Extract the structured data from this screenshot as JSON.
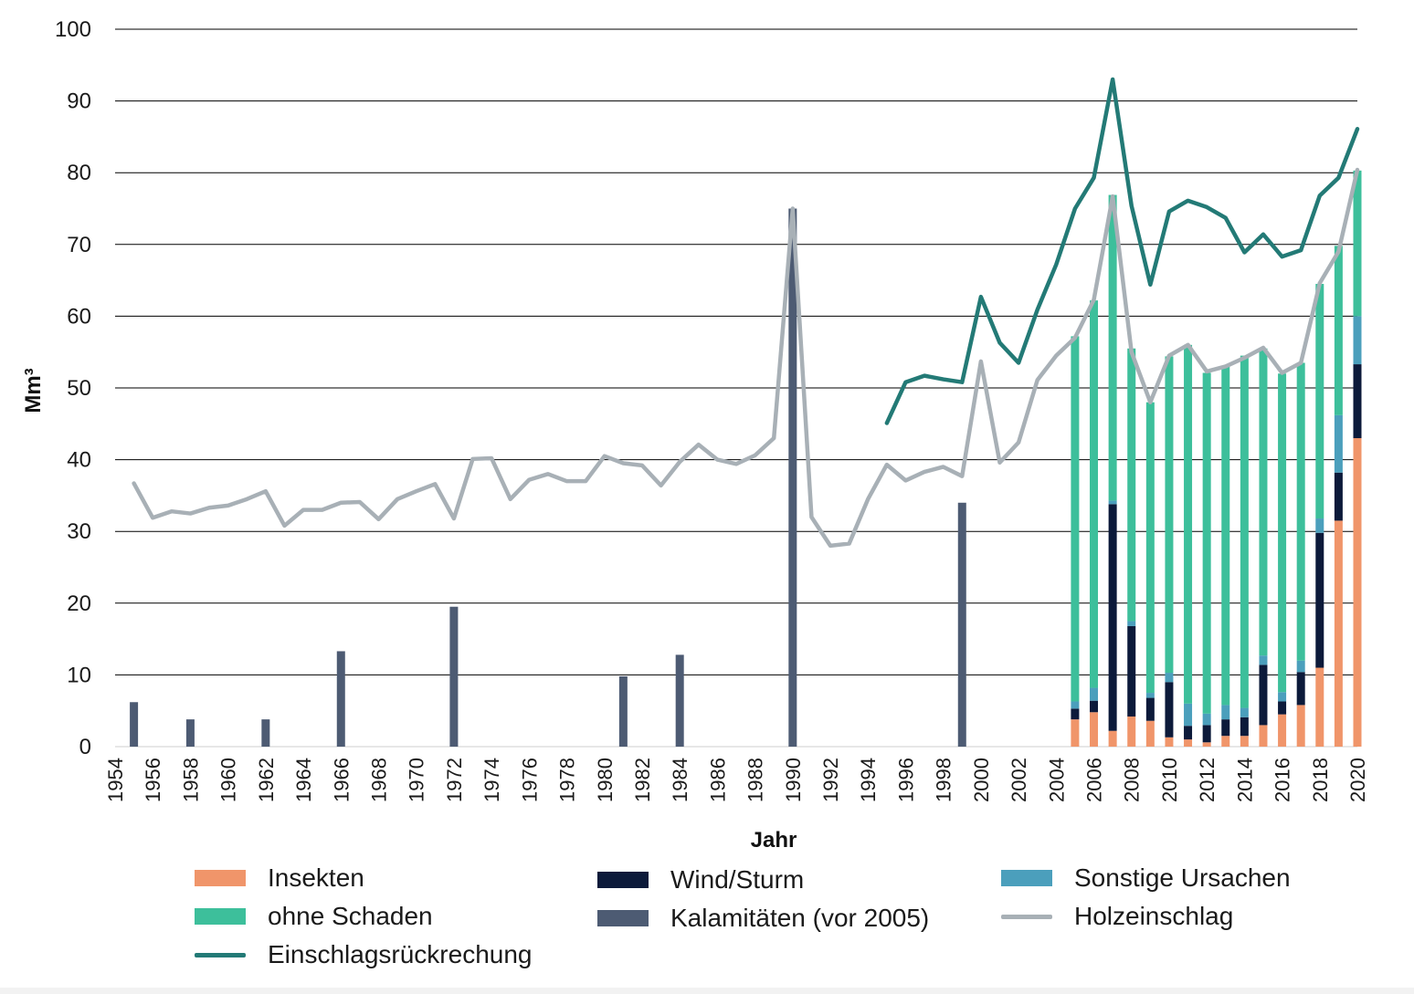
{
  "colors": {
    "insekten": "#F0956A",
    "ohne_schaden": "#3DBF9B",
    "wind": "#0C1A3A",
    "sonstige": "#4B9FBC",
    "kalamitaeten": "#4D5B73",
    "einschlag": "#237A76",
    "holzeinschlag": "#A8B0B6",
    "grid": "#000000"
  },
  "chart_data": {
    "type": "bar",
    "xlabel": "Jahr",
    "ylabel": "Mm³",
    "ylim": [
      0,
      100
    ],
    "yticks": [
      "0",
      "10",
      "20",
      "30",
      "40",
      "50",
      "60",
      "70",
      "80",
      "90",
      "100"
    ],
    "xticks": [
      "1954",
      "1956",
      "1958",
      "1960",
      "1962",
      "1964",
      "1966",
      "1968",
      "1970",
      "1972",
      "1974",
      "1976",
      "1978",
      "1980",
      "1982",
      "1984",
      "1986",
      "1988",
      "1990",
      "1992",
      "1994",
      "1996",
      "1998",
      "2000",
      "2002",
      "2004",
      "2006",
      "2008",
      "2010",
      "2012",
      "2014",
      "2016",
      "2018",
      "2020"
    ],
    "grid": true,
    "legend_position": "bottom",
    "legend": {
      "insekten": "Insekten",
      "ohne_schaden": "ohne Schaden",
      "einschlag": "Einschlagsrückrechung",
      "wind": "Wind/Sturm",
      "kalamitaeten": "Kalamitäten (vor 2005)",
      "sonstige": "Sonstige Ursachen",
      "holzeinschlag": "Holzeinschlag"
    },
    "kalamitaeten": [
      {
        "year": 1955,
        "value": 6.2
      },
      {
        "year": 1958,
        "value": 3.8
      },
      {
        "year": 1962,
        "value": 3.8
      },
      {
        "year": 1966,
        "value": 13.3
      },
      {
        "year": 1972,
        "value": 19.5
      },
      {
        "year": 1981,
        "value": 9.8
      },
      {
        "year": 1984,
        "value": 12.8
      },
      {
        "year": 1990,
        "value": 75.0
      },
      {
        "year": 1999,
        "value": 34.0
      }
    ],
    "stacked_years": [
      2005,
      2006,
      2007,
      2008,
      2009,
      2010,
      2011,
      2012,
      2013,
      2014,
      2015,
      2016,
      2017,
      2018,
      2019,
      2020
    ],
    "series": [
      {
        "name": "Insekten",
        "key": "insekten",
        "values": [
          3.8,
          4.8,
          2.2,
          4.2,
          3.6,
          1.3,
          1.0,
          0.6,
          1.5,
          1.5,
          3.0,
          4.5,
          5.8,
          11.0,
          31.5,
          43.0
        ]
      },
      {
        "name": "Wind/Sturm",
        "key": "wind",
        "values": [
          1.5,
          1.6,
          31.6,
          12.6,
          3.2,
          7.7,
          1.9,
          2.4,
          2.3,
          2.6,
          8.4,
          1.8,
          4.6,
          18.8,
          6.7,
          10.3
        ]
      },
      {
        "name": "Sonstige Ursachen",
        "key": "sonstige",
        "values": [
          1.0,
          1.8,
          0.5,
          0.7,
          0.7,
          1.3,
          3.1,
          1.6,
          2.0,
          1.3,
          1.3,
          1.3,
          1.6,
          2.0,
          8.0,
          6.7
        ]
      },
      {
        "name": "ohne Schaden",
        "key": "ohne_schaden",
        "values": [
          50.9,
          54.0,
          42.6,
          38.0,
          40.5,
          44.1,
          50.0,
          47.5,
          47.2,
          49.1,
          42.8,
          44.4,
          41.5,
          32.7,
          23.6,
          20.3
        ]
      }
    ],
    "holzeinschlag": {
      "years": [
        1955,
        1956,
        1957,
        1958,
        1959,
        1960,
        1961,
        1962,
        1963,
        1964,
        1965,
        1966,
        1967,
        1968,
        1969,
        1970,
        1971,
        1972,
        1973,
        1974,
        1975,
        1976,
        1977,
        1978,
        1979,
        1980,
        1981,
        1982,
        1983,
        1984,
        1985,
        1986,
        1987,
        1988,
        1989,
        1990,
        1991,
        1992,
        1993,
        1994,
        1995,
        1996,
        1997,
        1998,
        1999,
        2000,
        2001,
        2002,
        2003,
        2004,
        2005,
        2006,
        2007,
        2008,
        2009,
        2010,
        2011,
        2012,
        2013,
        2014,
        2015,
        2016,
        2017,
        2018,
        2019,
        2020
      ],
      "values": [
        36.7,
        31.9,
        32.8,
        32.5,
        33.3,
        33.6,
        34.5,
        35.6,
        30.8,
        33.0,
        33.0,
        34.0,
        34.1,
        31.7,
        34.5,
        35.6,
        36.6,
        31.8,
        40.1,
        40.2,
        34.5,
        37.2,
        38.0,
        37.0,
        37.0,
        40.5,
        39.5,
        39.2,
        36.4,
        39.7,
        42.1,
        40.0,
        39.4,
        40.6,
        43.0,
        75.0,
        32.0,
        28.0,
        28.3,
        34.5,
        39.3,
        37.1,
        38.3,
        39.0,
        37.7,
        53.7,
        39.6,
        42.4,
        51.1,
        54.5,
        57.0,
        62.3,
        76.7,
        55.0,
        48.0,
        54.5,
        56.0,
        52.3,
        53.0,
        54.2,
        55.6,
        52.1,
        53.5,
        64.6,
        69.0,
        80.4
      ]
    },
    "einschlagsrueckrechnung": {
      "years": [
        1995,
        1996,
        1997,
        1998,
        1999,
        2000,
        2001,
        2002,
        2003,
        2004,
        2005,
        2006,
        2007,
        2008,
        2009,
        2010,
        2011,
        2012,
        2013,
        2014,
        2015,
        2016,
        2017,
        2018,
        2019,
        2020
      ],
      "values": [
        45.1,
        50.8,
        51.7,
        51.2,
        50.8,
        62.7,
        56.3,
        53.5,
        60.9,
        67.2,
        75.0,
        79.3,
        93.0,
        75.4,
        64.4,
        74.6,
        76.1,
        75.2,
        73.7,
        68.9,
        71.4,
        68.3,
        69.2,
        76.8,
        79.3,
        86.1
      ]
    }
  }
}
